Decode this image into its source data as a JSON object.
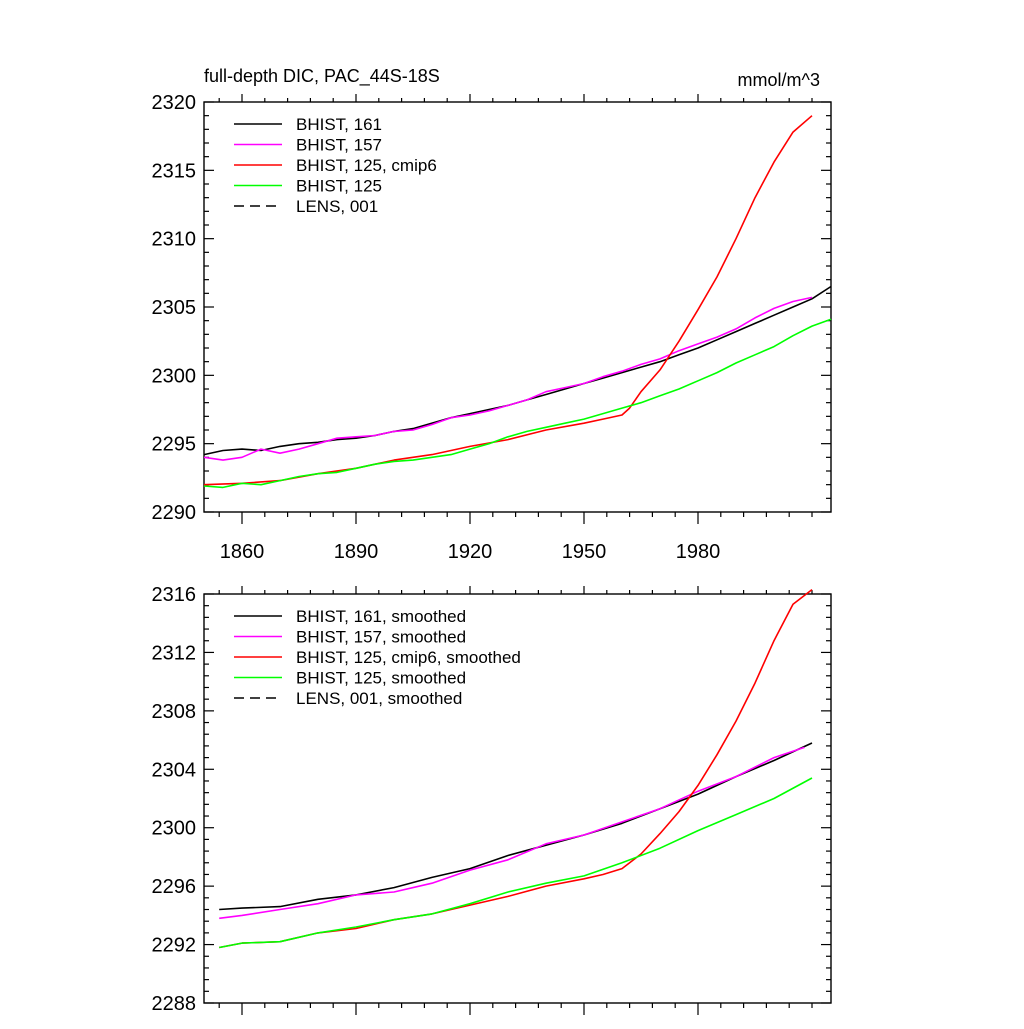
{
  "chart_data": [
    {
      "type": "line",
      "title": "full-depth DIC, PAC_44S-18S",
      "units": "mmol/m^3",
      "xlim": [
        1850,
        2015
      ],
      "ylim": [
        2290,
        2320
      ],
      "yticks": [
        2290,
        2295,
        2300,
        2305,
        2310,
        2315,
        2320
      ],
      "xticks": [
        1860,
        1890,
        1920,
        1950,
        1980
      ],
      "show_x_tick_labels": true,
      "legend_position": "top-left",
      "series": [
        {
          "name": "BHIST, 161",
          "color": "#000000",
          "dash": "solid",
          "x": [
            1850,
            1855,
            1860,
            1865,
            1870,
            1875,
            1880,
            1885,
            1890,
            1895,
            1900,
            1905,
            1910,
            1915,
            1920,
            1925,
            1930,
            1935,
            1940,
            1945,
            1950,
            1955,
            1960,
            1965,
            1970,
            1975,
            1980,
            1985,
            1990,
            1995,
            2000,
            2005,
            2010,
            2015
          ],
          "y": [
            2294.2,
            2294.5,
            2294.6,
            2294.5,
            2294.8,
            2295.0,
            2295.1,
            2295.3,
            2295.4,
            2295.6,
            2295.9,
            2296.1,
            2296.5,
            2296.9,
            2297.2,
            2297.5,
            2297.8,
            2298.2,
            2298.6,
            2299.0,
            2299.4,
            2299.8,
            2300.2,
            2300.6,
            2301.0,
            2301.5,
            2302.0,
            2302.6,
            2303.2,
            2303.8,
            2304.4,
            2305.0,
            2305.6,
            2306.5
          ]
        },
        {
          "name": "BHIST, 157",
          "color": "#ff00ff",
          "dash": "solid",
          "x": [
            1850,
            1855,
            1860,
            1865,
            1870,
            1875,
            1880,
            1885,
            1890,
            1895,
            1900,
            1905,
            1910,
            1915,
            1920,
            1925,
            1930,
            1935,
            1940,
            1945,
            1950,
            1955,
            1960,
            1965,
            1970,
            1975,
            1980,
            1985,
            1990,
            1995,
            2000,
            2005,
            2010
          ],
          "y": [
            2294.0,
            2293.8,
            2294.0,
            2294.6,
            2294.3,
            2294.6,
            2295.0,
            2295.4,
            2295.5,
            2295.6,
            2295.9,
            2296.0,
            2296.4,
            2296.9,
            2297.1,
            2297.4,
            2297.8,
            2298.2,
            2298.8,
            2299.1,
            2299.4,
            2299.9,
            2300.3,
            2300.8,
            2301.2,
            2301.8,
            2302.3,
            2302.8,
            2303.4,
            2304.2,
            2304.9,
            2305.4,
            2305.7
          ]
        },
        {
          "name": "BHIST, 125, cmip6",
          "color": "#ff0000",
          "dash": "solid",
          "x": [
            1850,
            1860,
            1870,
            1880,
            1890,
            1900,
            1910,
            1920,
            1930,
            1940,
            1950,
            1955,
            1960,
            1962,
            1965,
            1970,
            1975,
            1980,
            1985,
            1990,
            1995,
            2000,
            2005,
            2010
          ],
          "y": [
            2292.0,
            2292.1,
            2292.3,
            2292.8,
            2293.2,
            2293.8,
            2294.2,
            2294.8,
            2295.3,
            2296.0,
            2296.5,
            2296.8,
            2297.1,
            2297.6,
            2298.8,
            2300.4,
            2302.5,
            2304.8,
            2307.2,
            2310.0,
            2313.0,
            2315.6,
            2317.8,
            2319.0
          ]
        },
        {
          "name": "BHIST, 125",
          "color": "#00ff00",
          "dash": "solid",
          "x": [
            1850,
            1855,
            1860,
            1865,
            1870,
            1875,
            1880,
            1885,
            1890,
            1895,
            1900,
            1905,
            1910,
            1915,
            1920,
            1925,
            1930,
            1935,
            1940,
            1945,
            1950,
            1955,
            1960,
            1965,
            1970,
            1975,
            1980,
            1985,
            1990,
            1995,
            2000,
            2005,
            2010,
            2015
          ],
          "y": [
            2291.9,
            2291.8,
            2292.1,
            2292.0,
            2292.3,
            2292.6,
            2292.8,
            2292.9,
            2293.2,
            2293.5,
            2293.7,
            2293.8,
            2294.0,
            2294.2,
            2294.6,
            2295.0,
            2295.5,
            2295.9,
            2296.2,
            2296.5,
            2296.8,
            2297.2,
            2297.6,
            2298.0,
            2298.5,
            2299.0,
            2299.6,
            2300.2,
            2300.9,
            2301.5,
            2302.1,
            2302.9,
            2303.6,
            2304.1
          ]
        }
      ]
    },
    {
      "type": "line",
      "title": "",
      "units": "",
      "xlim": [
        1850,
        2015
      ],
      "ylim": [
        2288,
        2316
      ],
      "yticks": [
        2288,
        2292,
        2296,
        2300,
        2304,
        2308,
        2312,
        2316
      ],
      "xticks": [
        1860,
        1890,
        1920,
        1950,
        1980
      ],
      "show_x_tick_labels": false,
      "legend_position": "top-left",
      "series": [
        {
          "name": "BHIST, 161, smoothed",
          "color": "#000000",
          "dash": "solid",
          "x": [
            1854,
            1860,
            1870,
            1880,
            1890,
            1900,
            1910,
            1920,
            1930,
            1940,
            1950,
            1960,
            1970,
            1980,
            1990,
            2000,
            2010
          ],
          "y": [
            2294.4,
            2294.5,
            2294.6,
            2295.1,
            2295.4,
            2295.9,
            2296.6,
            2297.2,
            2298.1,
            2298.8,
            2299.5,
            2300.3,
            2301.3,
            2302.3,
            2303.5,
            2304.6,
            2305.8
          ]
        },
        {
          "name": "BHIST, 157, smoothed",
          "color": "#ff00ff",
          "dash": "solid",
          "x": [
            1854,
            1860,
            1870,
            1880,
            1890,
            1900,
            1910,
            1920,
            1930,
            1940,
            1950,
            1960,
            1970,
            1980,
            1990,
            2000,
            2008
          ],
          "y": [
            2293.8,
            2294.0,
            2294.4,
            2294.8,
            2295.4,
            2295.6,
            2296.2,
            2297.1,
            2297.8,
            2298.9,
            2299.5,
            2300.4,
            2301.3,
            2302.5,
            2303.5,
            2304.8,
            2305.5
          ]
        },
        {
          "name": "BHIST, 125, cmip6, smoothed",
          "color": "#ff0000",
          "dash": "solid",
          "x": [
            1854,
            1860,
            1870,
            1880,
            1890,
            1900,
            1910,
            1920,
            1930,
            1940,
            1950,
            1955,
            1960,
            1965,
            1970,
            1975,
            1980,
            1985,
            1990,
            1995,
            2000,
            2005,
            2010
          ],
          "y": [
            2291.8,
            2292.1,
            2292.2,
            2292.8,
            2293.1,
            2293.7,
            2294.1,
            2294.7,
            2295.3,
            2296.0,
            2296.5,
            2296.8,
            2297.2,
            2298.2,
            2299.6,
            2301.1,
            2302.9,
            2305.0,
            2307.3,
            2309.9,
            2312.8,
            2315.3,
            2316.3
          ]
        },
        {
          "name": "BHIST, 125, smoothed",
          "color": "#00ff00",
          "dash": "solid",
          "x": [
            1854,
            1860,
            1870,
            1880,
            1890,
            1900,
            1910,
            1920,
            1930,
            1940,
            1950,
            1960,
            1970,
            1980,
            1990,
            2000,
            2010
          ],
          "y": [
            2291.8,
            2292.1,
            2292.2,
            2292.8,
            2293.2,
            2293.7,
            2294.1,
            2294.8,
            2295.6,
            2296.2,
            2296.7,
            2297.6,
            2298.6,
            2299.8,
            2300.9,
            2302.0,
            2303.4
          ]
        }
      ]
    }
  ],
  "legends": [
    {
      "items": [
        {
          "label": "BHIST, 161",
          "color": "#000000",
          "dash": "solid"
        },
        {
          "label": "BHIST, 157",
          "color": "#ff00ff",
          "dash": "solid"
        },
        {
          "label": "BHIST, 125, cmip6",
          "color": "#ff0000",
          "dash": "solid"
        },
        {
          "label": "BHIST, 125",
          "color": "#00ff00",
          "dash": "solid"
        },
        {
          "label": "LENS, 001",
          "color": "#000000",
          "dash": "dashed"
        }
      ]
    },
    {
      "items": [
        {
          "label": "BHIST, 161, smoothed",
          "color": "#000000",
          "dash": "solid"
        },
        {
          "label": "BHIST, 157, smoothed",
          "color": "#ff00ff",
          "dash": "solid"
        },
        {
          "label": "BHIST, 125, cmip6, smoothed",
          "color": "#ff0000",
          "dash": "solid"
        },
        {
          "label": "BHIST, 125, smoothed",
          "color": "#00ff00",
          "dash": "solid"
        },
        {
          "label": "LENS, 001, smoothed",
          "color": "#000000",
          "dash": "dashed"
        }
      ]
    }
  ]
}
